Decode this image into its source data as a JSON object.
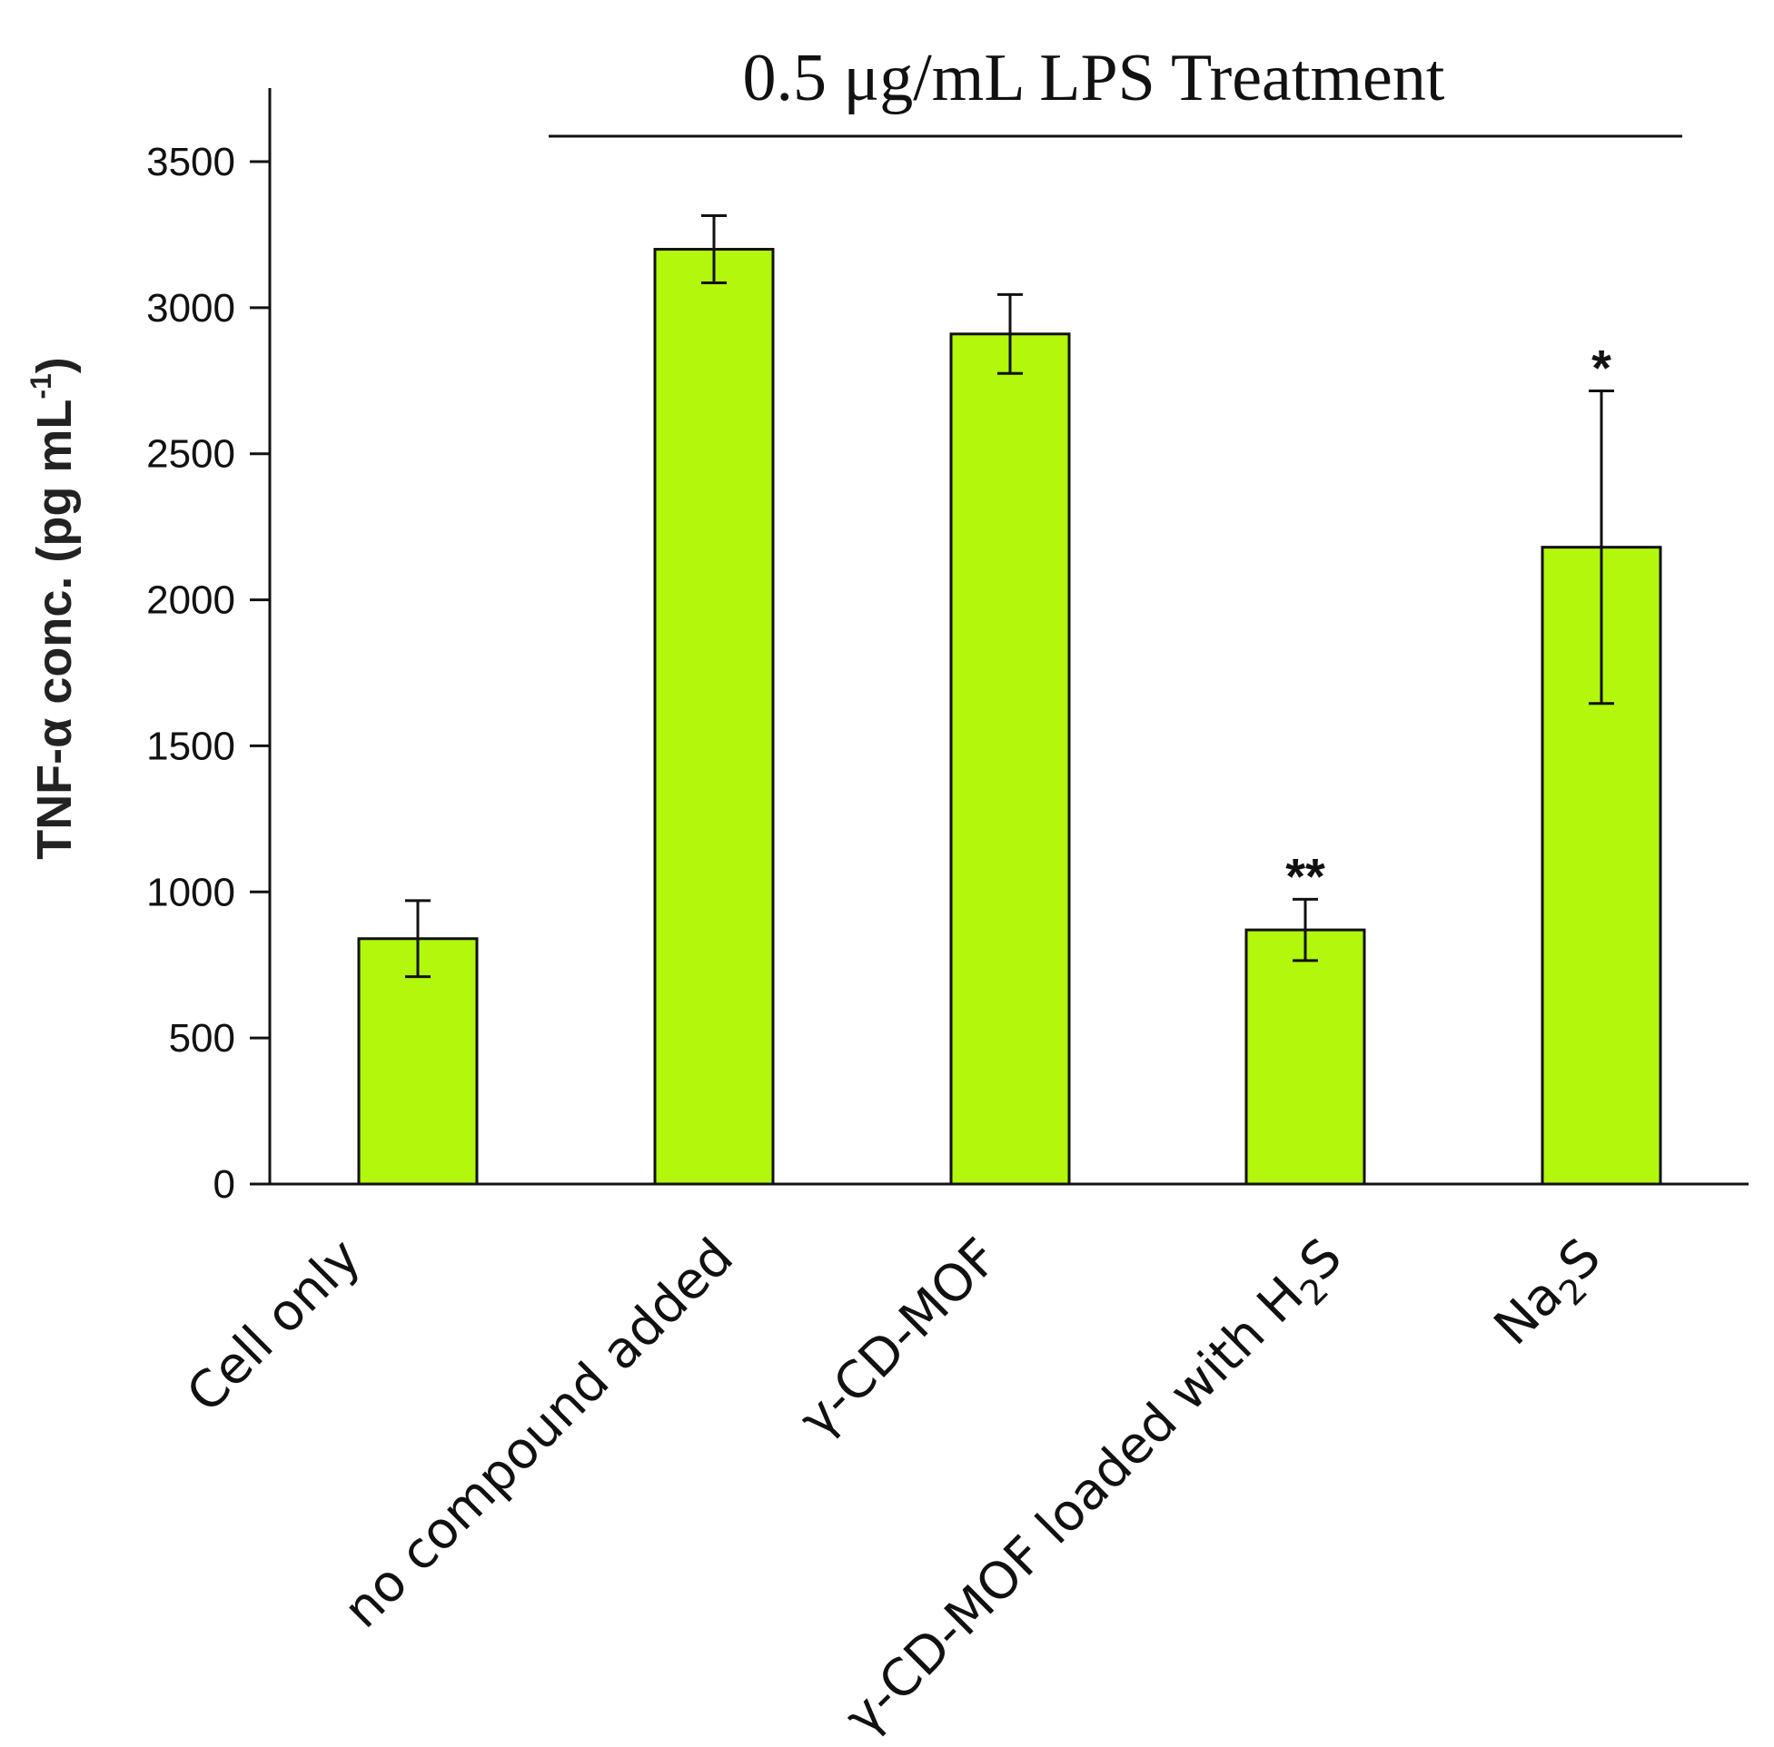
{
  "colors": {
    "bar": "#b2f70c",
    "axis": "#111111"
  },
  "chart_data": {
    "type": "bar",
    "title": "",
    "treatment_label": "0.5 μg/mL LPS Treatment",
    "ylabel": {
      "base": "TNF-α conc. (pg mL",
      "sup": "-1",
      "close": ")"
    },
    "xlabel": "",
    "ylim": [
      0,
      3700
    ],
    "yticks": [
      0,
      500,
      1000,
      1500,
      2000,
      2500,
      3000,
      3500
    ],
    "categories": [
      {
        "label": "Cell only"
      },
      {
        "label": "no compound added"
      },
      {
        "label": "γ-CD-MOF"
      },
      {
        "label": "γ-CD-MOF loaded with H",
        "sub": "2",
        "tail": "S"
      },
      {
        "label": "Na",
        "sub": "2",
        "tail": "S"
      }
    ],
    "values": [
      840,
      3200,
      2910,
      870,
      2180
    ],
    "errors": [
      130,
      115,
      135,
      105,
      535
    ],
    "significance": [
      "",
      "",
      "",
      "**",
      "*"
    ]
  }
}
